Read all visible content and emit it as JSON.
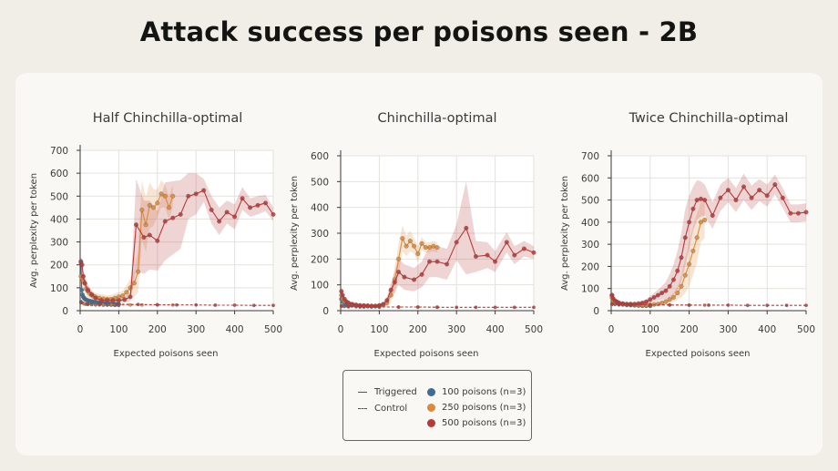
{
  "title": "Attack success per poisons seen - 2B",
  "legend": {
    "style_triggered": "Triggered",
    "style_control": "Control",
    "items": [
      {
        "label": "100 poisons (n=3)",
        "color": "#3e6c95"
      },
      {
        "label": "250 poisons (n=3)",
        "color": "#d98a3a"
      },
      {
        "label": "500 poisons (n=3)",
        "color": "#b8393a"
      }
    ]
  },
  "chart_data": [
    {
      "type": "line",
      "title": "Half Chinchilla-optimal",
      "xlabel": "Expected poisons seen",
      "ylabel": "Avg. perplexity per token",
      "xlim": [
        0,
        500
      ],
      "ylim": [
        0,
        700
      ],
      "xticks": [
        0,
        100,
        200,
        300,
        400,
        500
      ],
      "yticks": [
        0,
        100,
        200,
        300,
        400,
        500,
        600,
        700
      ],
      "grid": true,
      "series": [
        {
          "color": "#3e6c95",
          "style": "triggered",
          "x": [
            2,
            4,
            6,
            8,
            10,
            13,
            16,
            20,
            25,
            30,
            35,
            40,
            45,
            50,
            55,
            60,
            65,
            70,
            75,
            80,
            85,
            90,
            95,
            100
          ],
          "y": [
            215,
            90,
            70,
            60,
            55,
            50,
            47,
            44,
            42,
            40,
            38,
            36,
            35,
            34,
            33,
            32,
            31,
            30,
            30,
            29,
            29,
            28,
            28,
            28
          ]
        },
        {
          "color": "#3e6c95",
          "style": "control",
          "x": [
            2,
            5,
            10,
            15,
            20,
            30,
            40,
            50,
            60,
            70,
            80,
            90,
            100
          ],
          "y": [
            40,
            35,
            30,
            28,
            27,
            26,
            25,
            25,
            24,
            24,
            24,
            23,
            23
          ]
        },
        {
          "color": "#d98a3a",
          "style": "triggered",
          "x": [
            2,
            5,
            8,
            12,
            16,
            20,
            25,
            30,
            35,
            40,
            50,
            60,
            70,
            80,
            90,
            100,
            110,
            120,
            130,
            140,
            150,
            160,
            170,
            180,
            190,
            200,
            210,
            220,
            230,
            240
          ],
          "y": [
            150,
            140,
            130,
            120,
            95,
            85,
            75,
            68,
            63,
            60,
            55,
            52,
            50,
            50,
            55,
            60,
            65,
            80,
            100,
            120,
            170,
            440,
            375,
            460,
            450,
            470,
            510,
            500,
            450,
            500
          ],
          "band": [
            50,
            50,
            45,
            40,
            35,
            30,
            25,
            22,
            20,
            18,
            18,
            18,
            18,
            18,
            20,
            20,
            22,
            30,
            40,
            60,
            90,
            130,
            120,
            100,
            80,
            60,
            60,
            50,
            50,
            50
          ]
        },
        {
          "color": "#d98a3a",
          "style": "control",
          "x": [
            2,
            10,
            20,
            40,
            60,
            80,
            100,
            130,
            160,
            200,
            240
          ],
          "y": [
            35,
            30,
            28,
            27,
            26,
            26,
            25,
            25,
            25,
            25,
            25
          ]
        },
        {
          "color": "#b8393a",
          "style": "triggered",
          "x": [
            2,
            5,
            8,
            12,
            20,
            30,
            40,
            55,
            70,
            85,
            100,
            115,
            130,
            145,
            165,
            180,
            200,
            220,
            240,
            260,
            280,
            300,
            320,
            340,
            360,
            380,
            400,
            420,
            440,
            460,
            480,
            500
          ],
          "y": [
            210,
            200,
            150,
            120,
            90,
            70,
            55,
            45,
            45,
            45,
            45,
            48,
            60,
            375,
            320,
            330,
            305,
            390,
            405,
            420,
            500,
            510,
            525,
            440,
            390,
            430,
            410,
            490,
            450,
            460,
            470,
            420
          ],
          "band": [
            25,
            25,
            25,
            25,
            20,
            15,
            12,
            10,
            10,
            10,
            10,
            12,
            20,
            200,
            160,
            150,
            130,
            170,
            160,
            150,
            100,
            90,
            50,
            60,
            60,
            50,
            55,
            50,
            40,
            40,
            35,
            30
          ]
        },
        {
          "color": "#b8393a",
          "style": "control",
          "x": [
            2,
            20,
            50,
            100,
            150,
            200,
            250,
            300,
            350,
            400,
            450,
            500
          ],
          "y": [
            35,
            30,
            28,
            28,
            27,
            26,
            25,
            25,
            24,
            24,
            23,
            23
          ]
        }
      ]
    },
    {
      "type": "line",
      "title": "Chinchilla-optimal",
      "xlabel": "Expected poisons seen",
      "ylabel": "Avg. perplexity per token",
      "xlim": [
        0,
        500
      ],
      "ylim": [
        0,
        600
      ],
      "xticks": [
        0,
        100,
        200,
        300,
        400,
        500
      ],
      "yticks": [
        0,
        100,
        200,
        300,
        400,
        500,
        600
      ],
      "grid": true,
      "series": [
        {
          "color": "#3e6c95",
          "style": "triggered",
          "x": [
            2,
            5,
            10,
            15,
            20,
            30,
            40,
            50,
            60,
            70,
            80,
            90,
            100
          ],
          "y": [
            45,
            35,
            28,
            24,
            22,
            20,
            19,
            18,
            18,
            17,
            17,
            17,
            17
          ]
        },
        {
          "color": "#3e6c95",
          "style": "control",
          "x": [
            2,
            10,
            20,
            40,
            60,
            80,
            100
          ],
          "y": [
            18,
            16,
            15,
            15,
            14,
            14,
            14
          ]
        },
        {
          "color": "#d98a3a",
          "style": "triggered",
          "x": [
            2,
            5,
            10,
            20,
            30,
            40,
            50,
            60,
            70,
            80,
            90,
            100,
            110,
            120,
            130,
            140,
            150,
            160,
            170,
            180,
            190,
            200,
            210,
            220,
            230,
            240,
            250
          ],
          "y": [
            60,
            45,
            35,
            28,
            24,
            22,
            20,
            19,
            19,
            18,
            18,
            20,
            22,
            30,
            60,
            120,
            200,
            280,
            250,
            270,
            250,
            220,
            260,
            245,
            245,
            250,
            245
          ],
          "band": [
            20,
            15,
            12,
            10,
            8,
            7,
            6,
            6,
            6,
            6,
            6,
            6,
            8,
            15,
            25,
            50,
            60,
            50,
            40,
            40,
            30,
            30,
            25,
            20,
            20,
            20,
            20
          ]
        },
        {
          "color": "#d98a3a",
          "style": "control",
          "x": [
            2,
            20,
            50,
            100,
            150,
            200,
            250
          ],
          "y": [
            16,
            15,
            14,
            14,
            14,
            14,
            14
          ]
        },
        {
          "color": "#b8393a",
          "style": "triggered",
          "x": [
            2,
            5,
            10,
            15,
            20,
            30,
            40,
            50,
            60,
            70,
            80,
            90,
            100,
            110,
            120,
            130,
            140,
            150,
            165,
            190,
            210,
            230,
            250,
            275,
            300,
            325,
            350,
            380,
            400,
            430,
            450,
            475,
            500
          ],
          "y": [
            75,
            60,
            45,
            35,
            30,
            25,
            22,
            20,
            20,
            19,
            18,
            18,
            20,
            25,
            40,
            80,
            110,
            150,
            130,
            120,
            140,
            190,
            190,
            180,
            265,
            320,
            210,
            215,
            190,
            265,
            215,
            240,
            225
          ],
          "band": [
            20,
            15,
            12,
            10,
            9,
            8,
            7,
            6,
            6,
            6,
            6,
            6,
            6,
            8,
            15,
            25,
            40,
            50,
            50,
            45,
            50,
            60,
            60,
            60,
            70,
            180,
            60,
            50,
            40,
            40,
            35,
            30,
            25
          ]
        },
        {
          "color": "#b8393a",
          "style": "control",
          "x": [
            2,
            20,
            50,
            100,
            150,
            200,
            250,
            300,
            350,
            400,
            450,
            500
          ],
          "y": [
            18,
            16,
            15,
            14,
            14,
            14,
            13,
            13,
            13,
            13,
            13,
            13
          ]
        }
      ]
    },
    {
      "type": "line",
      "title": "Twice Chinchilla-optimal",
      "xlabel": "Expected poisons seen",
      "ylabel": "Avg. perplexity per token",
      "xlim": [
        0,
        500
      ],
      "ylim": [
        0,
        700
      ],
      "xticks": [
        0,
        100,
        200,
        300,
        400,
        500
      ],
      "yticks": [
        0,
        100,
        200,
        300,
        400,
        500,
        600,
        700
      ],
      "grid": true,
      "series": [
        {
          "color": "#3e6c95",
          "style": "triggered",
          "x": [
            2,
            5,
            10,
            15,
            20,
            30,
            40,
            50,
            60,
            70,
            80,
            90,
            100
          ],
          "y": [
            70,
            50,
            40,
            35,
            32,
            28,
            26,
            25,
            24,
            23,
            22,
            22,
            22
          ]
        },
        {
          "color": "#3e6c95",
          "style": "control",
          "x": [
            2,
            10,
            20,
            40,
            60,
            80,
            100
          ],
          "y": [
            30,
            28,
            26,
            25,
            25,
            24,
            24
          ]
        },
        {
          "color": "#d98a3a",
          "style": "triggered",
          "x": [
            2,
            5,
            10,
            20,
            30,
            40,
            50,
            60,
            70,
            80,
            90,
            100,
            110,
            120,
            130,
            140,
            150,
            160,
            170,
            180,
            190,
            200,
            210,
            220,
            230,
            240
          ],
          "y": [
            60,
            48,
            40,
            34,
            30,
            28,
            27,
            26,
            25,
            25,
            25,
            26,
            28,
            30,
            35,
            40,
            50,
            60,
            80,
            110,
            160,
            210,
            270,
            330,
            400,
            410
          ],
          "band": [
            20,
            15,
            12,
            10,
            9,
            8,
            7,
            7,
            7,
            7,
            7,
            7,
            8,
            9,
            10,
            12,
            15,
            20,
            30,
            50,
            80,
            100,
            110,
            110,
            90,
            80
          ]
        },
        {
          "color": "#d98a3a",
          "style": "control",
          "x": [
            2,
            20,
            50,
            100,
            150,
            200,
            240
          ],
          "y": [
            28,
            27,
            26,
            26,
            25,
            25,
            25
          ]
        },
        {
          "color": "#b8393a",
          "style": "triggered",
          "x": [
            2,
            5,
            10,
            15,
            20,
            30,
            40,
            50,
            60,
            70,
            80,
            90,
            100,
            110,
            120,
            130,
            140,
            150,
            160,
            170,
            180,
            190,
            200,
            210,
            220,
            230,
            240,
            260,
            280,
            300,
            320,
            340,
            360,
            380,
            400,
            420,
            440,
            460,
            480,
            500
          ],
          "y": [
            70,
            55,
            45,
            40,
            35,
            32,
            30,
            30,
            30,
            32,
            35,
            40,
            50,
            60,
            70,
            80,
            90,
            110,
            140,
            180,
            240,
            330,
            400,
            460,
            500,
            505,
            500,
            430,
            510,
            545,
            500,
            560,
            510,
            545,
            520,
            570,
            510,
            440,
            440,
            445
          ],
          "band": [
            20,
            15,
            12,
            10,
            9,
            8,
            7,
            7,
            7,
            8,
            10,
            12,
            15,
            20,
            25,
            30,
            40,
            55,
            70,
            90,
            110,
            130,
            120,
            100,
            90,
            80,
            70,
            60,
            60,
            55,
            55,
            60,
            55,
            50,
            50,
            45,
            45,
            40,
            40,
            40
          ]
        },
        {
          "color": "#b8393a",
          "style": "control",
          "x": [
            2,
            20,
            50,
            100,
            150,
            200,
            250,
            300,
            350,
            400,
            450,
            500
          ],
          "y": [
            30,
            28,
            27,
            26,
            26,
            25,
            25,
            25,
            24,
            24,
            24,
            24
          ]
        }
      ]
    }
  ]
}
